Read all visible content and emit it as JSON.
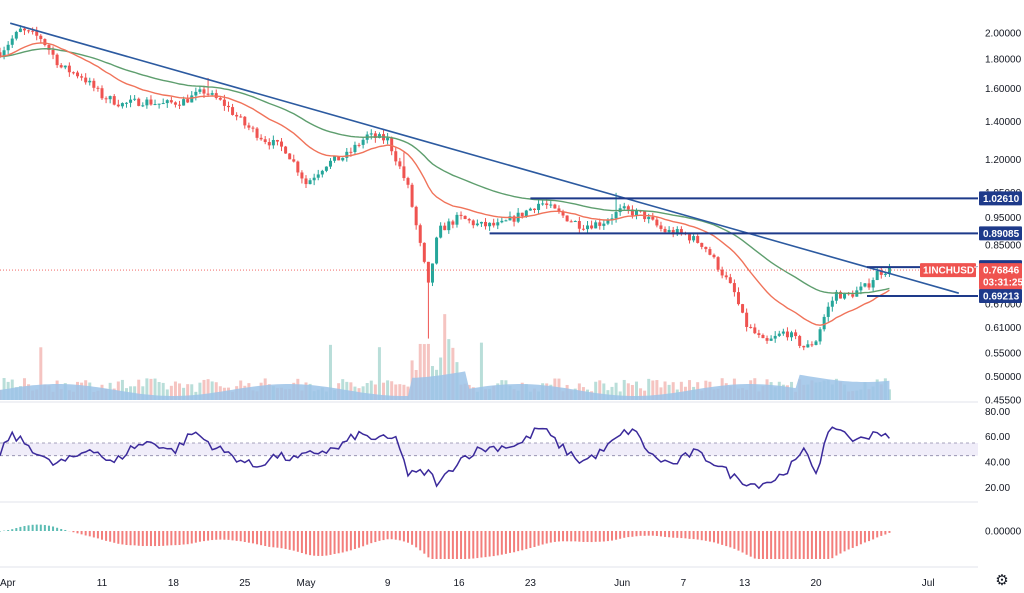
{
  "chart_data": [
    {
      "type": "candlestick",
      "symbol": "1INCHUSDT",
      "last_price": "0.76846",
      "countdown": "03:31:25",
      "y_scale": "log",
      "ylim": [
        0.455,
        2.15
      ],
      "y_ticks": [
        "2.00000",
        "1.80000",
        "1.60000",
        "1.40000",
        "1.20000",
        "1.05000",
        "0.95000",
        "0.85000",
        "0.67000",
        "0.61000",
        "0.55000",
        "0.50000",
        "0.45500"
      ],
      "x_ticks": [
        {
          "label": "Apr",
          "day": 0
        },
        {
          "label": "11",
          "day": 10
        },
        {
          "label": "18",
          "day": 17
        },
        {
          "label": "25",
          "day": 24
        },
        {
          "label": "May",
          "day": 30
        },
        {
          "label": "9",
          "day": 38
        },
        {
          "label": "16",
          "day": 45
        },
        {
          "label": "23",
          "day": 52
        },
        {
          "label": "Jun",
          "day": 61
        },
        {
          "label": "7",
          "day": 67
        },
        {
          "label": "13",
          "day": 73
        },
        {
          "label": "20",
          "day": 80
        },
        {
          "label": "Jul",
          "day": 91
        }
      ],
      "price_path": [
        [
          0,
          1.85
        ],
        [
          2,
          2.02
        ],
        [
          4,
          1.96
        ],
        [
          6,
          1.74
        ],
        [
          8,
          1.68
        ],
        [
          10,
          1.55
        ],
        [
          12,
          1.5
        ],
        [
          14,
          1.52
        ],
        [
          16,
          1.5
        ],
        [
          18,
          1.52
        ],
        [
          20,
          1.58
        ],
        [
          22,
          1.5
        ],
        [
          24,
          1.38
        ],
        [
          26,
          1.3
        ],
        [
          28,
          1.25
        ],
        [
          30,
          1.09
        ],
        [
          32,
          1.18
        ],
        [
          34,
          1.22
        ],
        [
          36,
          1.32
        ],
        [
          38,
          1.3
        ],
        [
          40,
          1.07
        ],
        [
          41,
          0.88
        ],
        [
          42,
          0.72
        ],
        [
          43,
          0.9
        ],
        [
          45,
          0.95
        ],
        [
          47,
          0.92
        ],
        [
          49,
          0.92
        ],
        [
          51,
          0.96
        ],
        [
          53,
          1.01
        ],
        [
          55,
          0.96
        ],
        [
          57,
          0.92
        ],
        [
          59,
          0.93
        ],
        [
          61,
          0.98
        ],
        [
          63,
          0.96
        ],
        [
          65,
          0.9
        ],
        [
          67,
          0.89
        ],
        [
          69,
          0.85
        ],
        [
          70,
          0.8
        ],
        [
          72,
          0.7
        ],
        [
          73,
          0.62
        ],
        [
          75,
          0.57
        ],
        [
          77,
          0.6
        ],
        [
          79,
          0.56
        ],
        [
          80,
          0.58
        ],
        [
          81,
          0.65
        ],
        [
          82,
          0.7
        ],
        [
          83,
          0.69
        ],
        [
          85,
          0.72
        ],
        [
          86,
          0.76
        ],
        [
          87,
          0.77
        ]
      ],
      "series": [
        {
          "name": "",
          "kind": "ema_fast",
          "color": "#f0735a"
        },
        {
          "name": "",
          "kind": "ema_slow",
          "color": "#5e9e6e"
        }
      ],
      "trendline": {
        "color": "#2c5aa0",
        "from": [
          1,
          2.08
        ],
        "to": [
          94,
          0.7
        ]
      },
      "horizontal_levels": [
        {
          "value": 1.0261,
          "label": "1.02610",
          "color": "#1e3a8a",
          "from_day": 52
        },
        {
          "value": 0.89085,
          "label": "0.89085",
          "color": "#1e3a8a",
          "from_day": 48
        },
        {
          "value": 0.77766,
          "label": "0.77766",
          "color": "#1e3a8a",
          "from_day": 85
        },
        {
          "value": 0.69213,
          "label": "0.69213",
          "color": "#1e3a8a",
          "from_day": 85
        }
      ],
      "volume_color": "#9cc3e8"
    },
    {
      "type": "line",
      "indicator": "RSI",
      "ylim": [
        10,
        85
      ],
      "y_ticks": [
        80,
        60,
        40,
        20
      ],
      "band": [
        45,
        55
      ],
      "color": "#3b2a9b",
      "values_path": [
        [
          0,
          45
        ],
        [
          1,
          62
        ],
        [
          3,
          52
        ],
        [
          5,
          38
        ],
        [
          7,
          42
        ],
        [
          9,
          52
        ],
        [
          11,
          38
        ],
        [
          13,
          52
        ],
        [
          15,
          56
        ],
        [
          17,
          48
        ],
        [
          19,
          64
        ],
        [
          21,
          52
        ],
        [
          23,
          44
        ],
        [
          25,
          36
        ],
        [
          27,
          45
        ],
        [
          29,
          42
        ],
        [
          31,
          48
        ],
        [
          33,
          50
        ],
        [
          35,
          62
        ],
        [
          37,
          58
        ],
        [
          39,
          58
        ],
        [
          40,
          30
        ],
        [
          42,
          32
        ],
        [
          43,
          22
        ],
        [
          45,
          42
        ],
        [
          47,
          50
        ],
        [
          49,
          52
        ],
        [
          51,
          54
        ],
        [
          53,
          68
        ],
        [
          55,
          52
        ],
        [
          57,
          40
        ],
        [
          59,
          48
        ],
        [
          61,
          62
        ],
        [
          62,
          66
        ],
        [
          64,
          44
        ],
        [
          66,
          38
        ],
        [
          68,
          48
        ],
        [
          70,
          40
        ],
        [
          72,
          28
        ],
        [
          74,
          22
        ],
        [
          76,
          26
        ],
        [
          78,
          40
        ],
        [
          79,
          50
        ],
        [
          80,
          32
        ],
        [
          81,
          58
        ],
        [
          82,
          68
        ],
        [
          84,
          56
        ],
        [
          86,
          65
        ],
        [
          87,
          58
        ]
      ]
    },
    {
      "type": "bar",
      "indicator": "MACD histogram",
      "y_ticks": [
        "0.00000"
      ],
      "up_color": "#26a69a",
      "down_color": "#ef5350"
    }
  ],
  "ui": {
    "settings_icon": "gear-icon"
  }
}
